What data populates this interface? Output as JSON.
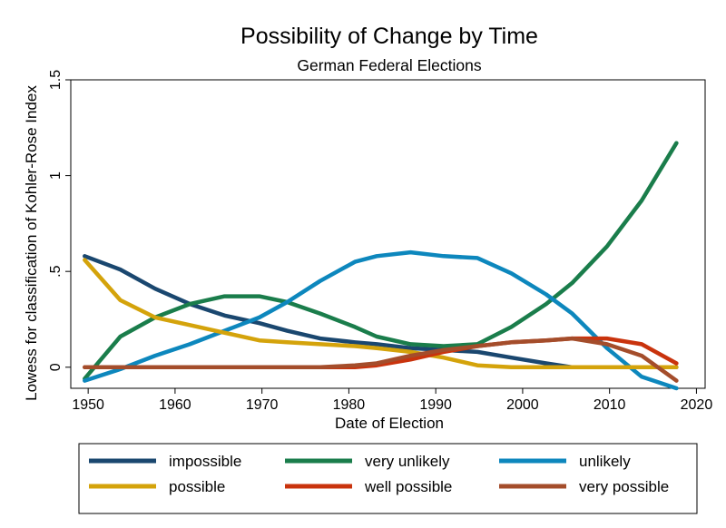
{
  "chart_data": {
    "type": "line",
    "title": "Possibility of Change by Time",
    "subtitle": "German Federal Elections",
    "xlabel": "Date of Election",
    "ylabel": "Lowess for classification of Kohler-Rose Index",
    "xlim": [
      1948,
      2021
    ],
    "ylim": [
      -0.11,
      1.5
    ],
    "x_ticks": [
      1950,
      1960,
      1970,
      1980,
      1990,
      2000,
      2010,
      2020
    ],
    "x_tick_labels": [
      "1950",
      "1960",
      "1970",
      "1980",
      "1990",
      "2000",
      "2010",
      "2020"
    ],
    "y_ticks": [
      0,
      0.5,
      1,
      1.5
    ],
    "y_tick_labels": [
      "0",
      ".5",
      "1",
      "1.5"
    ],
    "grid": false,
    "legend_position": "bottom",
    "x": [
      1949.6,
      1953.7,
      1957.7,
      1961.7,
      1965.7,
      1969.7,
      1972.9,
      1976.7,
      1980.7,
      1983.2,
      1987.1,
      1990.9,
      1994.8,
      1998.7,
      2002.7,
      2005.7,
      2009.7,
      2013.7,
      2017.7
    ],
    "series": [
      {
        "name": "impossible",
        "color": "#1a476f",
        "values": [
          0.58,
          0.51,
          0.41,
          0.33,
          0.27,
          0.23,
          0.19,
          0.15,
          0.13,
          0.12,
          0.1,
          0.09,
          0.08,
          0.05,
          0.02,
          0.0,
          0.0,
          0.0,
          0.0
        ]
      },
      {
        "name": "very unlikely",
        "color": "#1a7d4b",
        "values": [
          -0.06,
          0.16,
          0.26,
          0.33,
          0.37,
          0.37,
          0.34,
          0.28,
          0.21,
          0.16,
          0.12,
          0.11,
          0.12,
          0.21,
          0.33,
          0.44,
          0.63,
          0.87,
          1.17
        ]
      },
      {
        "name": "unlikely",
        "color": "#0d87bd",
        "values": [
          -0.07,
          -0.01,
          0.06,
          0.12,
          0.19,
          0.26,
          0.34,
          0.45,
          0.55,
          0.58,
          0.6,
          0.58,
          0.57,
          0.49,
          0.38,
          0.28,
          0.1,
          -0.05,
          -0.11
        ]
      },
      {
        "name": "possible",
        "color": "#d4a30b",
        "values": [
          0.56,
          0.35,
          0.26,
          0.22,
          0.18,
          0.14,
          0.13,
          0.12,
          0.11,
          0.1,
          0.08,
          0.05,
          0.01,
          0.0,
          0.0,
          0.0,
          0.0,
          0.0,
          0.0
        ]
      },
      {
        "name": "well possible",
        "color": "#c9330d",
        "values": [
          0.0,
          0.0,
          0.0,
          0.0,
          0.0,
          0.0,
          0.0,
          0.0,
          0.0,
          0.01,
          0.04,
          0.08,
          0.11,
          0.13,
          0.14,
          0.15,
          0.15,
          0.12,
          0.02
        ]
      },
      {
        "name": "very possible",
        "color": "#a44d2b",
        "values": [
          0.0,
          0.0,
          0.0,
          0.0,
          0.0,
          0.0,
          0.0,
          0.0,
          0.01,
          0.02,
          0.06,
          0.09,
          0.11,
          0.13,
          0.14,
          0.15,
          0.12,
          0.06,
          -0.07
        ]
      }
    ]
  }
}
